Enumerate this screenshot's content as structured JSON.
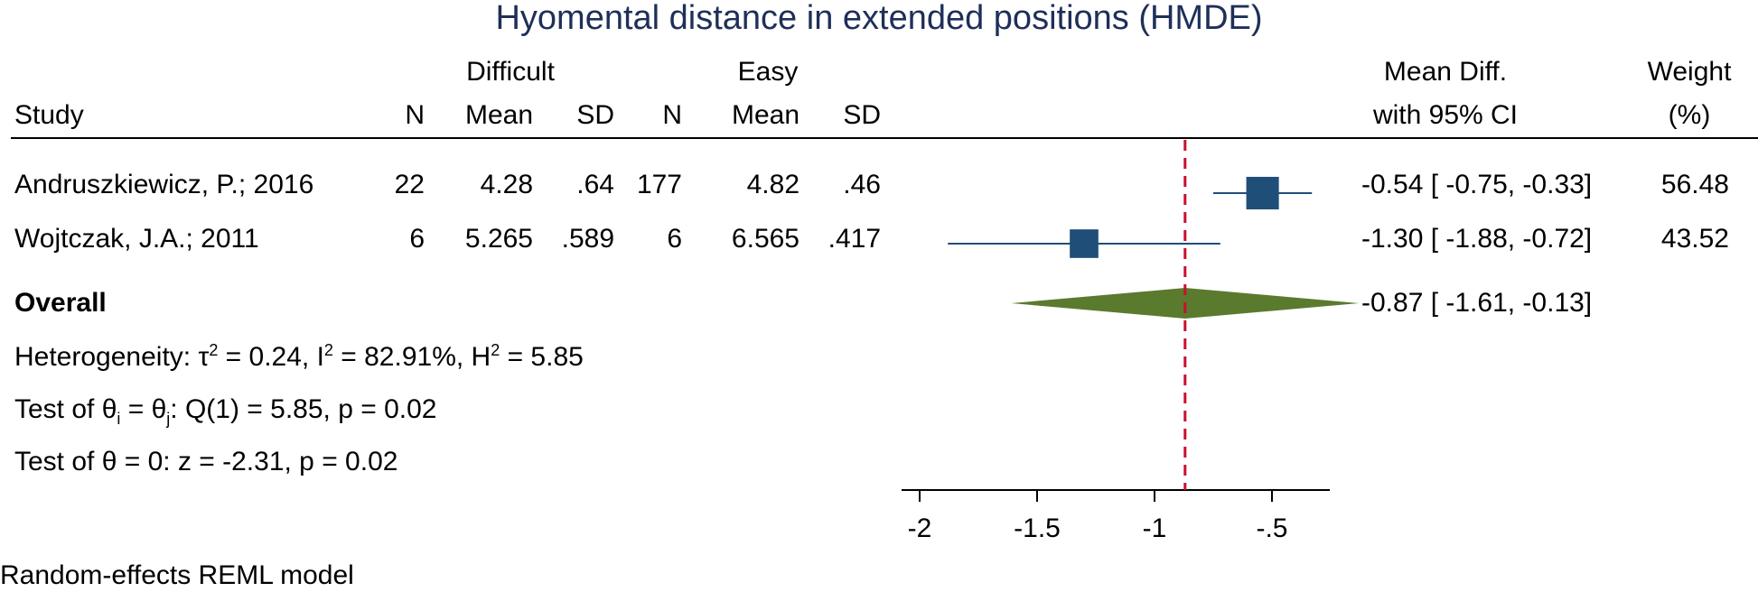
{
  "title": "Hyomental distance in extended positions (HMDE)",
  "headers": {
    "study": "Study",
    "difficult_group": "Difficult",
    "easy_group": "Easy",
    "n": "N",
    "mean": "Mean",
    "sd": "SD",
    "effect_top": "Mean Diff.",
    "effect_bottom": "with 95% CI",
    "weight_top": "Weight",
    "weight_bottom": "(%)"
  },
  "studies": [
    {
      "name": "Andruszkiewicz, P.; 2016",
      "d_n": "22",
      "d_mean": "4.28",
      "d_sd": ".64",
      "e_n": "177",
      "e_mean": "4.82",
      "e_sd": ".46",
      "ci_text": "-0.54 [ -0.75, -0.33]",
      "weight": "56.48"
    },
    {
      "name": "Wojtczak, J.A.; 2011",
      "d_n": "6",
      "d_mean": "5.265",
      "d_sd": ".589",
      "e_n": "6",
      "e_mean": "6.565",
      "e_sd": ".417",
      "ci_text": "-1.30 [ -1.88, -0.72]",
      "weight": "43.52"
    }
  ],
  "overall": {
    "label": "Overall",
    "ci_text": "-0.87 [ -1.61, -0.13]"
  },
  "stats": {
    "heterogeneity": {
      "prefix": "Heterogeneity: τ",
      "sup1": "2",
      "mid1": " = 0.24, I",
      "sup2": "2",
      "mid2": " = 82.91%, H",
      "sup3": "2",
      "tail": " = 5.85"
    },
    "test_ij": {
      "prefix": "Test of θ",
      "sub1": "i",
      "mid": " = θ",
      "sub2": "j",
      "tail": ": Q(1) = 5.85, p = 0.02"
    },
    "test_zero": "Test of θ = 0: z = -2.31, p = 0.02"
  },
  "footnote": "Random-effects REML model",
  "colors": {
    "marker": "#1f4e79",
    "diamond": "#5a7a2e",
    "reference": "#c8102e",
    "title": "#1f2f5a"
  },
  "chart_data": {
    "type": "forest",
    "title": "Hyomental distance in extended positions (HMDE)",
    "xlabel": "",
    "xlim": [
      -2.0,
      -0.25
    ],
    "xticks": [
      -2,
      -1.5,
      -1,
      -0.5
    ],
    "xtick_labels": [
      "-2",
      "-1.5",
      "-1",
      "-.5"
    ],
    "reference_line": -0.87,
    "series": [
      {
        "name": "Andruszkiewicz, P.; 2016",
        "estimate": -0.54,
        "ci_low": -0.75,
        "ci_high": -0.33,
        "weight": 56.48
      },
      {
        "name": "Wojtczak, J.A.; 2011",
        "estimate": -1.3,
        "ci_low": -1.88,
        "ci_high": -0.72,
        "weight": 43.52
      }
    ],
    "overall": {
      "estimate": -0.87,
      "ci_low": -1.61,
      "ci_high": -0.13
    }
  }
}
